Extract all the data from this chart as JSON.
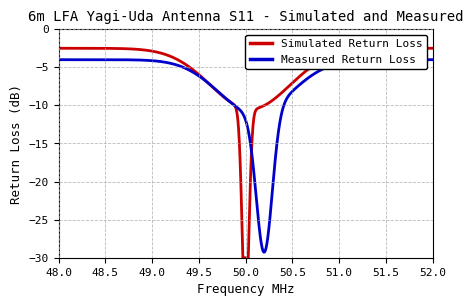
{
  "title": "6m LFA Yagi-Uda Antenna S11 - Simulated and Measured",
  "xlabel": "Frequency MHz",
  "ylabel": "Return Loss (dB)",
  "xlim": [
    48,
    52
  ],
  "ylim": [
    -30,
    0
  ],
  "xticks": [
    48,
    48.5,
    49,
    49.5,
    50,
    50.5,
    51,
    51.5,
    52
  ],
  "yticks": [
    0,
    -5,
    -10,
    -15,
    -20,
    -25,
    -30
  ],
  "simulated_color": "#cc0000",
  "measured_color": "#0000cc",
  "line_width": 2.0,
  "legend_labels": [
    "Simulated Return Loss",
    "Measured Return Loss"
  ],
  "background_color": "#ffffff",
  "grid_color": "#aaaaaa",
  "title_fontsize": 10,
  "axis_fontsize": 9,
  "tick_fontsize": 8
}
